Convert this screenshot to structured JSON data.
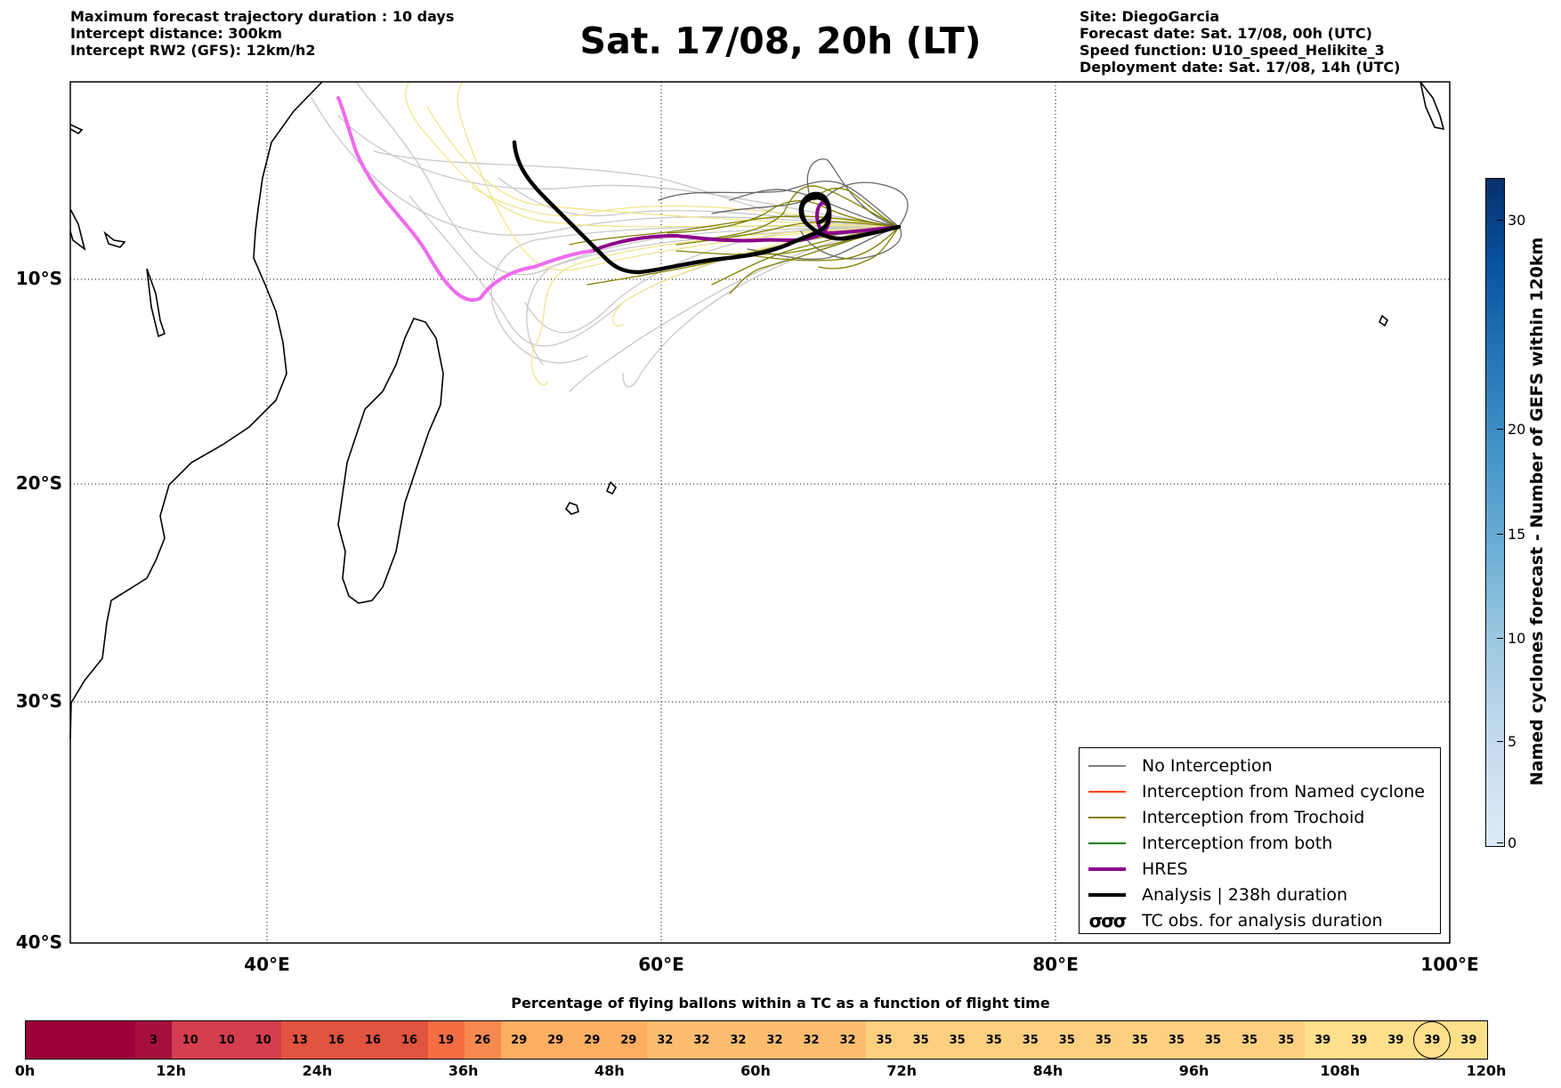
{
  "header": {
    "left_lines": [
      "Maximum forecast trajectory duration : 10 days",
      "Intercept distance: 300km",
      "Intercept RW2 (GFS):  12km/h2"
    ],
    "title": "Sat. 17/08, 20h (LT)",
    "right_lines": [
      "Site: DiegoGarcia",
      "Forecast date: Sat. 17/08, 00h (UTC)",
      "Speed function: U10_speed_Helikite_3",
      "Deployment date: Sat. 17/08, 14h (UTC)"
    ]
  },
  "map": {
    "lat_labels": [
      "10°S",
      "20°S",
      "30°S",
      "40°S"
    ],
    "lon_labels": [
      "40°E",
      "60°E",
      "80°E",
      "100°E"
    ],
    "colors": {
      "no_interception": "#666666",
      "light_gray": "#c8c8c8",
      "trochoid": "#808000",
      "yellow": "#f0e68c",
      "hres": "#8b008b",
      "hres_light": "#ee6aee",
      "analysis": "#000000"
    }
  },
  "legend": {
    "items": [
      {
        "label": "No Interception",
        "color": "#808080",
        "style": "thin"
      },
      {
        "label": "Interception from Named cyclone",
        "color": "#ff4500",
        "style": "thin"
      },
      {
        "label": "Interception from Trochoid",
        "color": "#808000",
        "style": "thin"
      },
      {
        "label": "Interception from both",
        "color": "#008000",
        "style": "thin"
      },
      {
        "label": "HRES",
        "color": "#8b008b",
        "style": "thick"
      },
      {
        "label": "Analysis | 238h duration",
        "color": "#000000",
        "style": "thick"
      },
      {
        "label": "TC obs. for analysis duration",
        "color": "#000000",
        "style": "symbol",
        "symbol": "σσσ"
      }
    ]
  },
  "colorbar": {
    "label": "Named cyclones forecast - Number of GEFS within 120km",
    "ticks": [
      "0",
      "5",
      "10",
      "15",
      "20",
      "30"
    ],
    "top_color": "#08306b",
    "bottom_color": "#deebf7"
  },
  "percentage_bar": {
    "title": "Percentage of flying ballons within a TC as a function of flight time",
    "cells": [
      "",
      "",
      "",
      "3",
      "10",
      "10",
      "10",
      "13",
      "16",
      "16",
      "16",
      "19",
      "26",
      "29",
      "29",
      "29",
      "29",
      "32",
      "32",
      "32",
      "32",
      "32",
      "32",
      "35",
      "35",
      "35",
      "35",
      "35",
      "35",
      "35",
      "35",
      "35",
      "35",
      "35",
      "35",
      "39",
      "39",
      "39",
      "39",
      "39"
    ],
    "circled_index": 38,
    "time_ticks": [
      "0h",
      "12h",
      "24h",
      "36h",
      "48h",
      "60h",
      "72h",
      "84h",
      "96h",
      "108h",
      "120h"
    ]
  }
}
